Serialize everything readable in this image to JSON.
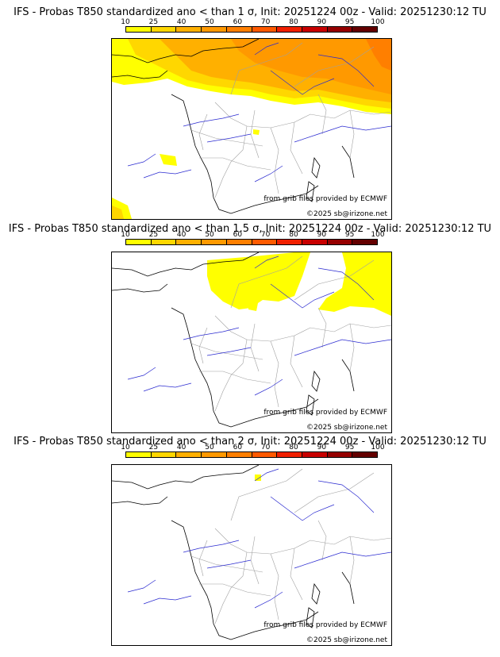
{
  "colors": {
    "levels": [
      "#ffff00",
      "#ffd700",
      "#ffb000",
      "#ff9900",
      "#ff7f00",
      "#ff5a00",
      "#f02000",
      "#c80000",
      "#960000",
      "#640000"
    ],
    "rivers": "#2a2ad0",
    "borders": "#a0a0a0",
    "coast": "#000000"
  },
  "scale": {
    "ticks": [
      "10",
      "25",
      "40",
      "50",
      "60",
      "70",
      "80",
      "90",
      "95",
      "100"
    ]
  },
  "panels": [
    {
      "title": "IFS - Probas T850  standardized ano < than 1 σ, Init: 20251224 00z - Valid: 20251230:12 TU",
      "credit_source": "from grib files provided by ECMWF",
      "credit_copyright": "©2025 sb@irizone.net"
    },
    {
      "title": "IFS - Probas T850  standardized ano < than 1.5 σ, Init: 20251224 00z - Valid: 20251230:12 TU",
      "credit_source": "from grib files provided by ECMWF",
      "credit_copyright": "©2025 sb@irizone.net"
    },
    {
      "title": "IFS - Probas T850  standardized ano < than 2 σ, Init: 20251224 00z - Valid: 20251230:12 TU",
      "credit_source": "from grib files provided by ECMWF",
      "credit_copyright": "©2025 sb@irizone.net"
    }
  ]
}
